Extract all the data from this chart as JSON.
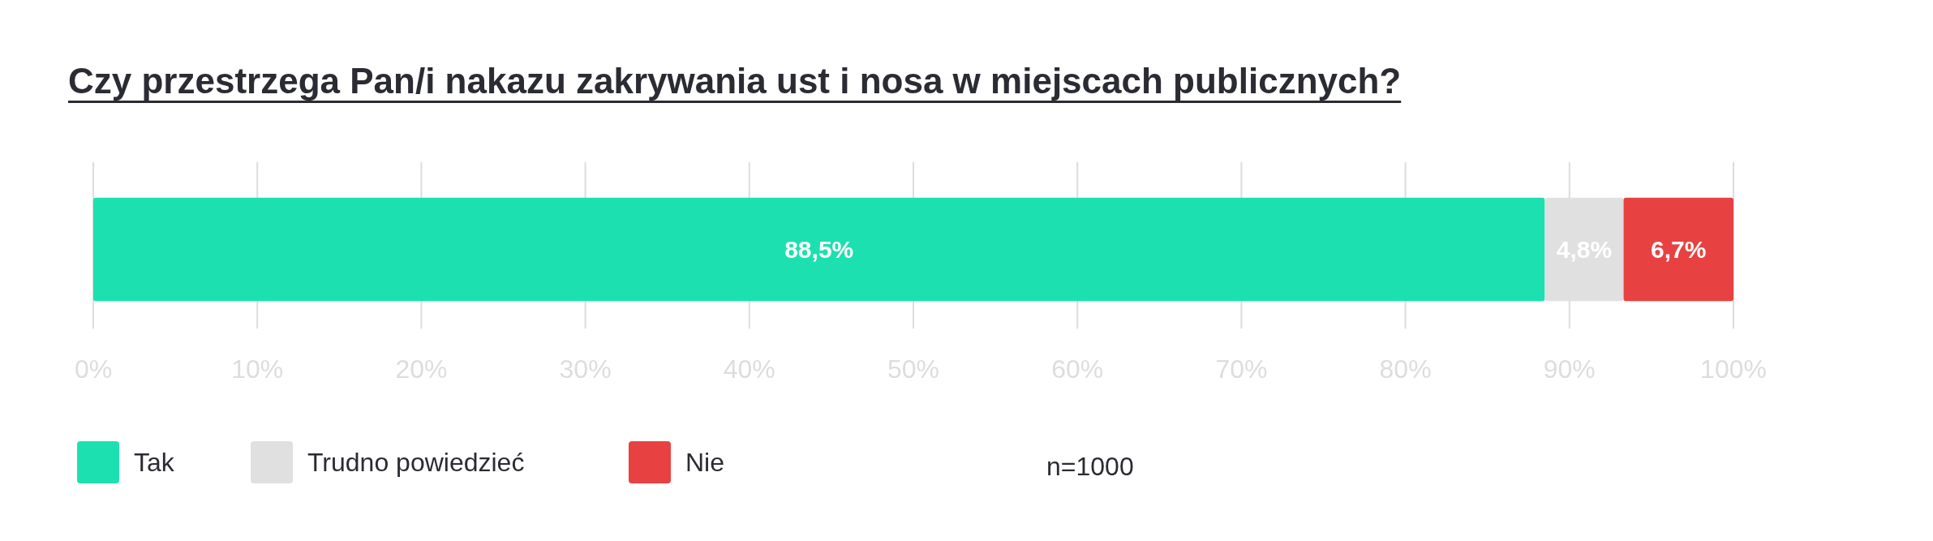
{
  "chart_data": {
    "type": "bar",
    "title": "Czy przestrzega Pan/i nakazu zakrywania ust i nosa w miejscach publicznych?",
    "orientation": "horizontal",
    "stacked": true,
    "categories": [
      null
    ],
    "series": [
      {
        "name": "Tak",
        "color": "#1de0b0",
        "values": [
          88.5
        ],
        "value_labels": [
          "88,5%"
        ]
      },
      {
        "name": "Trudno powiedzieć",
        "color": "#e0e0e0",
        "values": [
          4.8
        ],
        "value_labels": [
          "4,8%"
        ]
      },
      {
        "name": "Nie",
        "color": "#e84142",
        "values": [
          6.7
        ],
        "value_labels": [
          "6,7%"
        ]
      }
    ],
    "xlim": [
      0,
      100
    ],
    "xticks": [
      {
        "value": 0,
        "label": "0%"
      },
      {
        "value": 10,
        "label": "10%"
      },
      {
        "value": 20,
        "label": "20%"
      },
      {
        "value": 30,
        "label": "30%"
      },
      {
        "value": 40,
        "label": "40%"
      },
      {
        "value": 50,
        "label": "50%"
      },
      {
        "value": 60,
        "label": "60%"
      },
      {
        "value": 70,
        "label": "70%"
      },
      {
        "value": 80,
        "label": "80%"
      },
      {
        "value": 90,
        "label": "90%"
      },
      {
        "value": 100,
        "label": "100%"
      }
    ],
    "grid": "x",
    "legend": "bottom",
    "annotations": [
      "n=1000"
    ]
  }
}
